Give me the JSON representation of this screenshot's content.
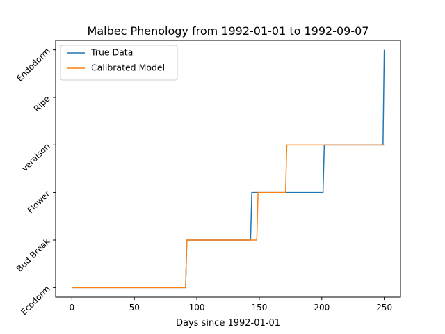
{
  "chart_data": {
    "type": "line",
    "title": "Malbec Phenology from 1992-01-01 to 1992-09-07",
    "xlabel": "Days since 1992-01-01",
    "ylabel": "",
    "xlim": [
      -13,
      263
    ],
    "ylim": [
      -0.2,
      5.2
    ],
    "xticks": [
      0,
      50,
      100,
      150,
      200,
      250
    ],
    "yticks": [
      {
        "value": 0,
        "label": "Ecodorm"
      },
      {
        "value": 1,
        "label": "Bud Break"
      },
      {
        "value": 2,
        "label": "Flower"
      },
      {
        "value": 3,
        "label": "veraison"
      },
      {
        "value": 4,
        "label": "Ripe"
      },
      {
        "value": 5,
        "label": "Endodorm"
      }
    ],
    "grid": false,
    "legend_position": "upper-left",
    "series": [
      {
        "name": "True Data",
        "color": "#1f77b4",
        "x": [
          0,
          91,
          92,
          143,
          144,
          201,
          202,
          249,
          250
        ],
        "y": [
          0,
          0,
          1,
          1,
          2,
          2,
          3,
          3,
          5
        ]
      },
      {
        "name": "Calibrated Model",
        "color": "#ff7f0e",
        "x": [
          0,
          91,
          92,
          148,
          149,
          171,
          172,
          250
        ],
        "y": [
          0,
          0,
          1,
          1,
          2,
          2,
          3,
          3
        ]
      }
    ]
  }
}
